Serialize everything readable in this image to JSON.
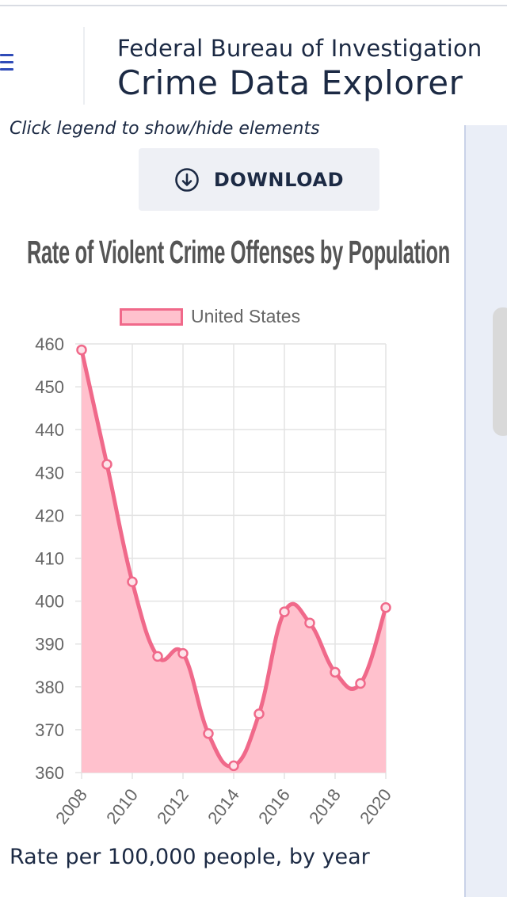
{
  "header": {
    "title_top": "Federal Bureau of Investigation",
    "title_main": "Crime Data Explorer"
  },
  "hint_text": "Click legend to show/hide elements",
  "download": {
    "label": "DOWNLOAD",
    "icon": "download-arrow-circle-icon"
  },
  "colors": {
    "line": "#f0698a",
    "fill": "#ffc1cd",
    "brand_text": "#1c2a44",
    "menu_icon": "#2f4bb8"
  },
  "footer_text": "Rate per 100,000 people, by year",
  "chart_data": {
    "type": "area",
    "title": "Rate of Violent Crime Offenses by Population",
    "x": [
      2008,
      2009,
      2010,
      2011,
      2012,
      2013,
      2014,
      2015,
      2016,
      2017,
      2018,
      2019,
      2020
    ],
    "series": [
      {
        "name": "United States",
        "values": [
          458.6,
          431.9,
          404.5,
          387.1,
          387.8,
          369.1,
          361.6,
          373.7,
          397.5,
          394.9,
          383.4,
          380.8,
          398.5
        ]
      }
    ],
    "x_ticks": [
      "2008",
      "2010",
      "2012",
      "2014",
      "2016",
      "2018",
      "2020"
    ],
    "y_ticks": [
      "360",
      "370",
      "380",
      "390",
      "400",
      "410",
      "420",
      "430",
      "440",
      "450",
      "460"
    ],
    "ylim": [
      360,
      460
    ],
    "xlim": [
      2008,
      2020
    ],
    "grid": true,
    "legend": "top-center",
    "xlabel": "",
    "ylabel": ""
  }
}
